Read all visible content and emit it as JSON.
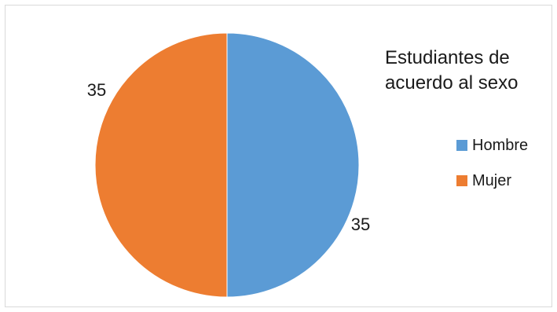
{
  "chart_data": {
    "type": "pie",
    "title_lines": [
      "Estudiantes de",
      "acuerdo al sexo"
    ],
    "series": [
      {
        "name": "Hombre",
        "value": 35,
        "color": "#5b9bd5"
      },
      {
        "name": "Mujer",
        "value": 35,
        "color": "#ed7d31"
      }
    ],
    "legend_position": "right"
  }
}
